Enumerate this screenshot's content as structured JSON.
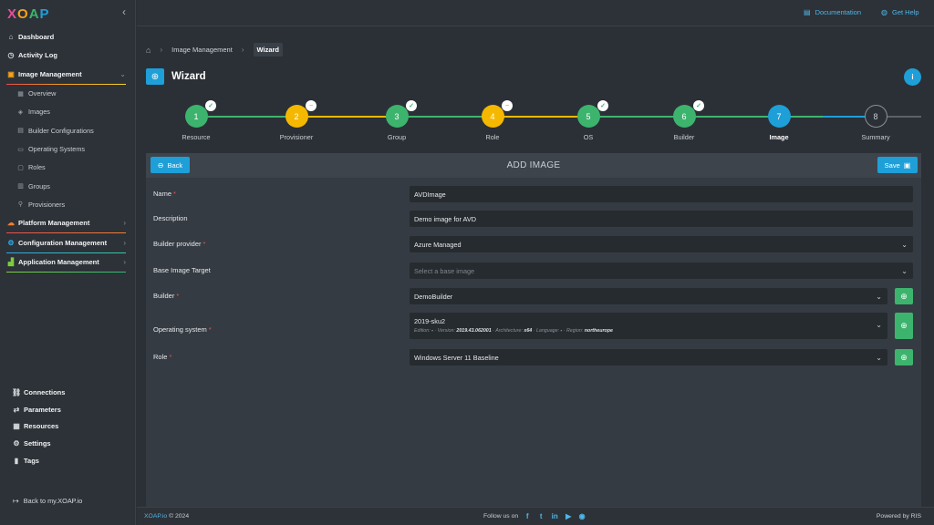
{
  "sidebar": {
    "logo": "XOAP",
    "items": [
      {
        "label": "Dashboard",
        "icon": "dashboard-icon"
      },
      {
        "label": "Activity Log",
        "icon": "clock-icon"
      },
      {
        "label": "Image Management",
        "icon": "image-management-icon"
      }
    ],
    "sub_items": [
      {
        "label": "Overview"
      },
      {
        "label": "Images"
      },
      {
        "label": "Builder Configurations"
      },
      {
        "label": "Operating Systems"
      },
      {
        "label": "Roles"
      },
      {
        "label": "Groups"
      },
      {
        "label": "Provisioners"
      }
    ],
    "sections": [
      {
        "label": "Platform Management"
      },
      {
        "label": "Configuration Management"
      },
      {
        "label": "Application Management"
      }
    ],
    "bottom_items": [
      {
        "label": "Connections"
      },
      {
        "label": "Parameters"
      },
      {
        "label": "Resources"
      },
      {
        "label": "Settings"
      },
      {
        "label": "Tags"
      }
    ],
    "back_link": "Back to my.XOAP.io"
  },
  "topbar": {
    "documentation": "Documentation",
    "help": "Get Help"
  },
  "breadcrumb": {
    "items": [
      "Image Management",
      "Wizard"
    ]
  },
  "page": {
    "title": "Wizard",
    "info": "i"
  },
  "stepper": {
    "steps": [
      {
        "number": "1",
        "label": "Resource",
        "status": "done",
        "color": "#3db46d"
      },
      {
        "number": "2",
        "label": "Provisioner",
        "status": "warning",
        "color": "#f5b800"
      },
      {
        "number": "3",
        "label": "Group",
        "status": "done",
        "color": "#3db46d"
      },
      {
        "number": "4",
        "label": "Role",
        "status": "warning",
        "color": "#f5b800"
      },
      {
        "number": "5",
        "label": "OS",
        "status": "done",
        "color": "#3db46d"
      },
      {
        "number": "6",
        "label": "Builder",
        "status": "done",
        "color": "#3db46d"
      },
      {
        "number": "7",
        "label": "Image",
        "status": "active",
        "color": "#1e9fd8"
      },
      {
        "number": "8",
        "label": "Summary",
        "status": "pending",
        "color": "#2b3036"
      }
    ]
  },
  "card": {
    "title": "ADD IMAGE",
    "back_label": "Back",
    "save_label": "Save"
  },
  "form": {
    "name": {
      "label": "Name",
      "value": "AVDImage"
    },
    "description": {
      "label": "Description",
      "value": "Demo image for AVD"
    },
    "builder_provider": {
      "label": "Builder provider",
      "value": "Azure Managed"
    },
    "base_image": {
      "label": "Base Image Target",
      "placeholder": "Select a base image"
    },
    "builder": {
      "label": "Builder",
      "value": "DemoBuilder"
    },
    "os": {
      "label": "Operating system",
      "value": "2019-sku2",
      "edition_label": "Edition:",
      "edition": "-",
      "version_label": "Version:",
      "version": "2019.43.062001",
      "arch_label": "Architecture:",
      "arch": "x64",
      "lang_label": "Language:",
      "lang": "-",
      "region_label": "Region:",
      "region": "northeurope"
    },
    "role": {
      "label": "Role",
      "value": "Windows Server 11 Baseline"
    }
  },
  "footer": {
    "brand": "XOAP.io",
    "year": "© 2024",
    "follow": "Follow us on",
    "powered": "Powered by RIS"
  },
  "colors": {
    "accent": "#1e9fd8",
    "success": "#3db46d",
    "warning": "#f5b800",
    "required": "#e05757"
  }
}
